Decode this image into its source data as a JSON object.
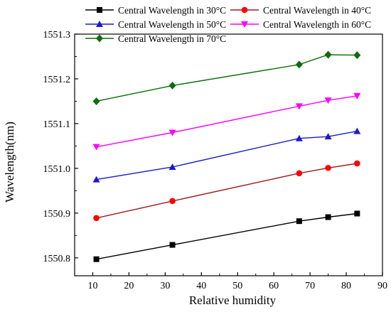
{
  "chart_data": {
    "type": "line",
    "title": "",
    "xlabel": "Relative humidity",
    "ylabel": "Wavelength(nm)",
    "xlim": [
      5,
      90
    ],
    "ylim": [
      1550.76,
      1551.3
    ],
    "x_ticks": [
      "10",
      "20",
      "30",
      "40",
      "50",
      "60",
      "70",
      "80",
      "90"
    ],
    "y_ticks": [
      "1550.8",
      "1550.9",
      "1551.0",
      "1551.1",
      "1551.2",
      "1551.3"
    ],
    "grid": false,
    "legend_position": "top",
    "x": [
      11,
      32,
      67,
      75,
      83
    ],
    "series": [
      {
        "name": "Central Wavelength in 30°C",
        "color": "#000000",
        "marker": "square",
        "values": [
          1550.797,
          1550.829,
          1550.882,
          1550.891,
          1550.899
        ]
      },
      {
        "name": "Central Wavelength in 40°C",
        "color": "#ff0000",
        "line_color": "#9b1c1c",
        "marker": "circle",
        "values": [
          1550.889,
          1550.927,
          1550.989,
          1551.001,
          1551.011
        ]
      },
      {
        "name": "Central Wavelength in 50°C",
        "color": "#1a1ad0",
        "marker": "triangle-up",
        "values": [
          1550.975,
          1551.003,
          1551.067,
          1551.071,
          1551.083
        ]
      },
      {
        "name": "Central Wavelength in 60°C",
        "color": "#ff00ff",
        "marker": "triangle-down",
        "values": [
          1551.048,
          1551.08,
          1551.139,
          1551.152,
          1551.162
        ]
      },
      {
        "name": "Central Wavelength in 70°C",
        "color": "#0b6e0b",
        "marker": "diamond",
        "values": [
          1551.15,
          1551.185,
          1551.232,
          1551.254,
          1551.253
        ]
      }
    ]
  }
}
